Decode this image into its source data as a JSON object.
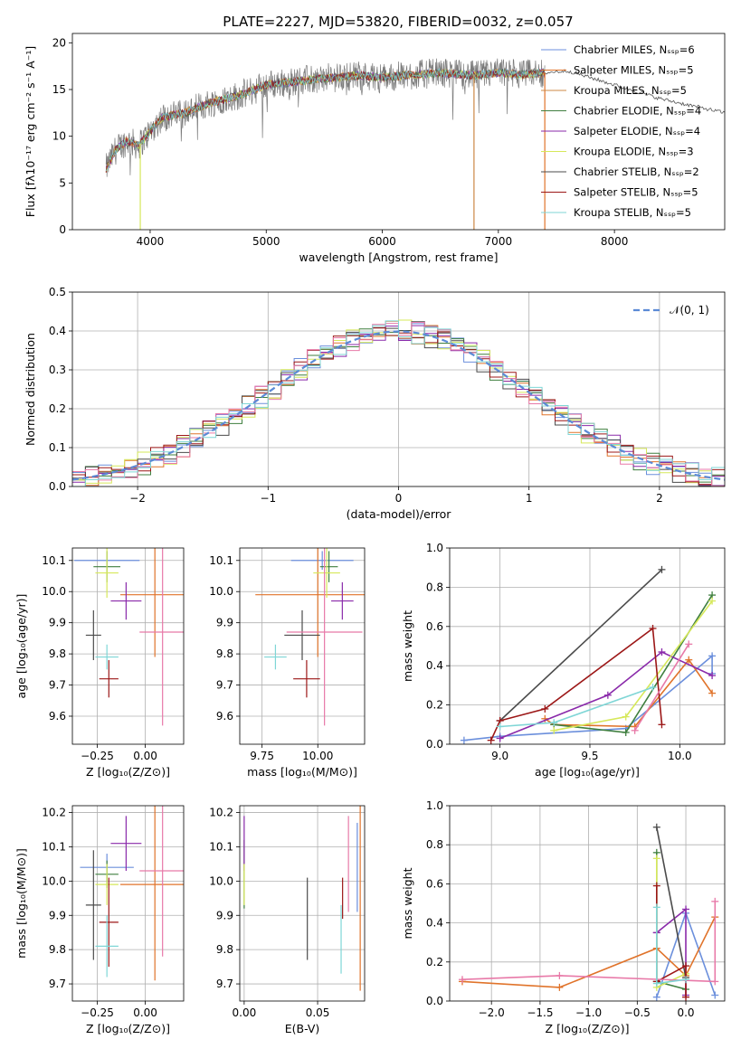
{
  "title": "PLATE=2227, MJD=53820, FIBERID=0032, z=0.057",
  "colors": [
    "#6b8fdc",
    "#e0732a",
    "#3f7f3f",
    "#8a2aaa",
    "#d6e85a",
    "#4b4b4b",
    "#9c1717",
    "#e879a8",
    "#7fd6d6",
    "#999999",
    "#cc8844"
  ],
  "chart_data": [
    {
      "id": "spectrum",
      "type": "line",
      "xlabel": "wavelength [Angstrom, rest frame]",
      "ylabel": "Flux [fλ10⁻¹⁷ erg cm⁻² s⁻¹ A⁻¹]",
      "xlim": [
        3330,
        8950
      ],
      "ylim": [
        0,
        21
      ],
      "xticks": [
        4000,
        5000,
        6000,
        7000,
        8000
      ],
      "yticks": [
        0,
        5,
        10,
        15,
        20
      ],
      "legend_position": "top-right",
      "series": [
        {
          "name": "Chabrier MILES, Nₛₛₚ=6",
          "color": "#6b8fdc"
        },
        {
          "name": "Salpeter MILES, Nₛₛₚ=5",
          "color": "#e0732a"
        },
        {
          "name": "Kroupa MILES, Nₛₛₚ=5",
          "color": "#cc8844"
        },
        {
          "name": "Chabrier ELODIE, Nₛₛₚ=4",
          "color": "#3f7f3f"
        },
        {
          "name": "Salpeter ELODIE, Nₛₛₚ=4",
          "color": "#8a2aaa"
        },
        {
          "name": "Kroupa ELODIE, Nₛₛₚ=3",
          "color": "#d6e85a"
        },
        {
          "name": "Chabrier STELIB, Nₛₛₚ=2",
          "color": "#4b4b4b"
        },
        {
          "name": "Salpeter STELIB, Nₛₛₚ=5",
          "color": "#9c1717"
        },
        {
          "name": "Kroupa STELIB, Nₛₛₚ=5",
          "color": "#7fd6d6"
        }
      ],
      "continuum": {
        "x": [
          3620,
          3700,
          3800,
          3900,
          4000,
          4100,
          4300,
          4500,
          4800,
          5000,
          5200,
          5500,
          5800,
          6000,
          6200,
          6500,
          6800,
          7000,
          7200,
          7400,
          7600,
          8000,
          8400,
          8950
        ],
        "y": [
          6.5,
          8.5,
          9.5,
          9.0,
          10.5,
          12.0,
          12.5,
          13.5,
          14.5,
          15.5,
          15.8,
          16.2,
          16.5,
          16.3,
          16.5,
          16.8,
          16.5,
          16.8,
          16.6,
          16.8,
          17.0,
          15.5,
          14.0,
          12.5
        ]
      }
    },
    {
      "id": "residuals",
      "type": "line",
      "xlabel": "(data-model)/error",
      "ylabel": "Normed distribution",
      "xlim": [
        -2.5,
        2.5
      ],
      "ylim": [
        0,
        0.5
      ],
      "xticks": [
        -2,
        -1,
        0,
        1,
        2
      ],
      "xtick_labels": [
        "−2",
        "−1",
        "0",
        "1",
        "2"
      ],
      "yticks": [
        0,
        0.1,
        0.2,
        0.3,
        0.4,
        0.5
      ],
      "legend": "𝒩(0, 1)",
      "legend_position": "top-right",
      "grid": true,
      "bins": 50
    },
    {
      "id": "age-vs-Z",
      "type": "errorbar",
      "xlabel": "Z [log₁₀(Z/Z⊙)]",
      "ylabel": "age  [log₁₀(age/yr)]",
      "xlim": [
        -0.38,
        0.2
      ],
      "ylim": [
        9.51,
        10.14
      ],
      "xticks": [
        -0.25,
        0.0
      ],
      "xtick_labels": [
        "−0.25",
        "0.00"
      ],
      "yticks": [
        9.6,
        9.7,
        9.8,
        9.9,
        10.0,
        10.1
      ],
      "points": [
        {
          "x": -0.2,
          "y": 10.1,
          "xerr": 0.17,
          "yerr": 0.03,
          "color": "#6b8fdc"
        },
        {
          "x": 0.05,
          "y": 9.99,
          "xerr": 0.18,
          "yerr": 0.2,
          "color": "#e0732a"
        },
        {
          "x": -0.2,
          "y": 10.08,
          "xerr": 0.07,
          "yerr": 0.05,
          "color": "#3f7f3f"
        },
        {
          "x": -0.1,
          "y": 9.97,
          "xerr": 0.08,
          "yerr": 0.06,
          "color": "#8a2aaa"
        },
        {
          "x": -0.2,
          "y": 10.06,
          "xerr": 0.06,
          "yerr": 0.08,
          "color": "#d6e85a"
        },
        {
          "x": -0.27,
          "y": 9.86,
          "xerr": 0.04,
          "yerr": 0.08,
          "color": "#4b4b4b"
        },
        {
          "x": -0.19,
          "y": 9.72,
          "xerr": 0.05,
          "yerr": 0.06,
          "color": "#9c1717"
        },
        {
          "x": 0.09,
          "y": 9.87,
          "xerr": 0.12,
          "yerr": 0.3,
          "color": "#e879a8"
        },
        {
          "x": -0.2,
          "y": 9.79,
          "xerr": 0.06,
          "yerr": 0.04,
          "color": "#7fd6d6"
        }
      ]
    },
    {
      "id": "age-vs-mass",
      "type": "errorbar",
      "xlabel": "mass [log₁₀(M/M⊙)]",
      "ylabel": "",
      "xlim": [
        9.65,
        10.21
      ],
      "ylim": [
        9.51,
        10.14
      ],
      "xticks": [
        9.75,
        10.0
      ],
      "xtick_labels": [
        "9.75",
        "10.00"
      ],
      "yticks": [
        9.6,
        9.7,
        9.8,
        9.9,
        10.0,
        10.1
      ],
      "points": [
        {
          "x": 10.02,
          "y": 10.1,
          "xerr": 0.14,
          "yerr": 0.03,
          "color": "#6b8fdc"
        },
        {
          "x": 10.0,
          "y": 9.99,
          "xerr": 0.28,
          "yerr": 0.2,
          "color": "#e0732a"
        },
        {
          "x": 10.05,
          "y": 10.08,
          "xerr": 0.04,
          "yerr": 0.05,
          "color": "#3f7f3f"
        },
        {
          "x": 10.11,
          "y": 9.97,
          "xerr": 0.05,
          "yerr": 0.06,
          "color": "#8a2aaa"
        },
        {
          "x": 10.04,
          "y": 10.06,
          "xerr": 0.06,
          "yerr": 0.08,
          "color": "#d6e85a"
        },
        {
          "x": 9.93,
          "y": 9.86,
          "xerr": 0.08,
          "yerr": 0.08,
          "color": "#4b4b4b"
        },
        {
          "x": 9.95,
          "y": 9.72,
          "xerr": 0.06,
          "yerr": 0.06,
          "color": "#9c1717"
        },
        {
          "x": 10.03,
          "y": 9.87,
          "xerr": 0.17,
          "yerr": 0.3,
          "color": "#e879a8"
        },
        {
          "x": 9.81,
          "y": 9.79,
          "xerr": 0.05,
          "yerr": 0.04,
          "color": "#7fd6d6"
        }
      ]
    },
    {
      "id": "weight-vs-age",
      "type": "line",
      "xlabel": "age  [log₁₀(age/yr)]",
      "ylabel": "mass weight",
      "xlim": [
        8.72,
        10.25
      ],
      "ylim": [
        0,
        1
      ],
      "xticks": [
        9.0,
        9.5,
        10.0
      ],
      "xtick_labels": [
        "9.0",
        "9.5",
        "10.0"
      ],
      "yticks": [
        0,
        0.2,
        0.4,
        0.6,
        0.8,
        1.0
      ],
      "grid": true,
      "series": [
        {
          "color": "#6b8fdc",
          "x": [
            8.8,
            9.0,
            9.7,
            10.18,
            10.18
          ],
          "y": [
            0.02,
            0.04,
            0.08,
            0.45,
            0.36
          ]
        },
        {
          "color": "#e0732a",
          "x": [
            9.25,
            9.3,
            9.75,
            10.05,
            10.18
          ],
          "y": [
            0.13,
            0.1,
            0.09,
            0.43,
            0.26
          ]
        },
        {
          "color": "#3f7f3f",
          "x": [
            9.3,
            9.7,
            10.18
          ],
          "y": [
            0.1,
            0.06,
            0.76
          ]
        },
        {
          "color": "#8a2aaa",
          "x": [
            9.0,
            9.6,
            9.9,
            10.18
          ],
          "y": [
            0.03,
            0.25,
            0.47,
            0.35
          ]
        },
        {
          "color": "#d6e85a",
          "x": [
            9.3,
            9.7,
            10.18
          ],
          "y": [
            0.07,
            0.14,
            0.73
          ]
        },
        {
          "color": "#4b4b4b",
          "x": [
            9.0,
            9.9
          ],
          "y": [
            0.12,
            0.89
          ]
        },
        {
          "color": "#9c1717",
          "x": [
            8.95,
            9.0,
            9.25,
            9.85,
            9.9
          ],
          "y": [
            0.02,
            0.12,
            0.18,
            0.59,
            0.1
          ]
        },
        {
          "color": "#e879a8",
          "x": [
            9.75,
            10.05
          ],
          "y": [
            0.07,
            0.51
          ]
        },
        {
          "color": "#7fd6d6",
          "x": [
            9.0,
            9.3,
            9.85
          ],
          "y": [
            0.09,
            0.11,
            0.29
          ]
        }
      ]
    },
    {
      "id": "mass-vs-Z",
      "type": "errorbar",
      "xlabel": "Z [log₁₀(Z/Z⊙)]",
      "ylabel": "mass [log₁₀(M/M⊙)]",
      "xlim": [
        -0.38,
        0.2
      ],
      "ylim": [
        9.65,
        10.22
      ],
      "xticks": [
        -0.25,
        0.0
      ],
      "xtick_labels": [
        "−0.25",
        "0.00"
      ],
      "yticks": [
        9.7,
        9.8,
        9.9,
        10.0,
        10.1,
        10.2
      ],
      "points": [
        {
          "x": -0.2,
          "y": 10.04,
          "xerr": 0.14,
          "yerr": 0.04,
          "color": "#6b8fdc"
        },
        {
          "x": 0.05,
          "y": 9.99,
          "xerr": 0.18,
          "yerr": 0.28,
          "color": "#e0732a"
        },
        {
          "x": -0.2,
          "y": 10.02,
          "xerr": 0.06,
          "yerr": 0.04,
          "color": "#3f7f3f"
        },
        {
          "x": -0.1,
          "y": 10.11,
          "xerr": 0.08,
          "yerr": 0.08,
          "color": "#8a2aaa"
        },
        {
          "x": -0.2,
          "y": 9.99,
          "xerr": 0.06,
          "yerr": 0.06,
          "color": "#d6e85a"
        },
        {
          "x": -0.27,
          "y": 9.93,
          "xerr": 0.04,
          "yerr": 0.16,
          "color": "#4b4b4b"
        },
        {
          "x": -0.19,
          "y": 9.88,
          "xerr": 0.05,
          "yerr": 0.13,
          "color": "#9c1717"
        },
        {
          "x": 0.09,
          "y": 10.03,
          "xerr": 0.12,
          "yerr": 0.25,
          "color": "#e879a8"
        },
        {
          "x": -0.2,
          "y": 9.81,
          "xerr": 0.06,
          "yerr": 0.09,
          "color": "#7fd6d6"
        }
      ]
    },
    {
      "id": "mass-vs-ebv",
      "type": "errorbar",
      "xlabel": "E(B-V)",
      "ylabel": "",
      "xlim": [
        -0.003,
        0.082
      ],
      "ylim": [
        9.65,
        10.22
      ],
      "xticks": [
        0.0,
        0.05
      ],
      "xtick_labels": [
        "0.00",
        "0.05"
      ],
      "yticks": [
        9.7,
        9.8,
        9.9,
        10.0,
        10.1,
        10.2
      ],
      "points": [
        {
          "x": 0.077,
          "y": 10.04,
          "xerr": 0,
          "yerr": 0.13,
          "color": "#6b8fdc"
        },
        {
          "x": 0.079,
          "y": 9.98,
          "xerr": 0,
          "yerr": 0.3,
          "color": "#e0732a"
        },
        {
          "x": 0.0,
          "y": 10.02,
          "xerr": 0,
          "yerr": 0.1,
          "color": "#3f7f3f"
        },
        {
          "x": 0.0,
          "y": 10.11,
          "xerr": 0,
          "yerr": 0.08,
          "color": "#8a2aaa"
        },
        {
          "x": 0.0,
          "y": 9.99,
          "xerr": 0,
          "yerr": 0.06,
          "color": "#d6e85a"
        },
        {
          "x": 0.043,
          "y": 9.89,
          "xerr": 0,
          "yerr": 0.12,
          "color": "#4b4b4b"
        },
        {
          "x": 0.067,
          "y": 9.95,
          "xerr": 0,
          "yerr": 0.06,
          "color": "#9c1717"
        },
        {
          "x": 0.071,
          "y": 10.05,
          "xerr": 0,
          "yerr": 0.14,
          "color": "#e879a8"
        },
        {
          "x": 0.066,
          "y": 9.83,
          "xerr": 0,
          "yerr": 0.1,
          "color": "#7fd6d6"
        }
      ]
    },
    {
      "id": "weight-vs-Z",
      "type": "line",
      "xlabel": "Z [log₁₀(Z/Z⊙)]",
      "ylabel": "mass weight",
      "xlim": [
        -2.43,
        0.4
      ],
      "ylim": [
        0,
        1
      ],
      "xticks": [
        -2.0,
        -1.5,
        -1.0,
        -0.5,
        0.0
      ],
      "xtick_labels": [
        "−2.0",
        "−1.5",
        "−1.0",
        "−0.5",
        "0.0"
      ],
      "yticks": [
        0,
        0.2,
        0.4,
        0.6,
        0.8,
        1.0
      ],
      "grid": true,
      "series": [
        {
          "color": "#6b8fdc",
          "x": [
            -0.3,
            0.0,
            0.3
          ],
          "y": [
            0.02,
            0.45,
            0.03
          ]
        },
        {
          "color": "#e0732a",
          "x": [
            -2.3,
            -1.3,
            -0.3,
            0.0,
            0.3
          ],
          "y": [
            0.1,
            0.07,
            0.27,
            0.13,
            0.43
          ]
        },
        {
          "color": "#3f7f3f",
          "x": [
            -0.3,
            -0.3,
            0.0
          ],
          "y": [
            0.76,
            0.1,
            0.06
          ]
        },
        {
          "color": "#8a2aaa",
          "x": [
            -0.3,
            -0.3,
            0.0,
            0.0
          ],
          "y": [
            0.35,
            0.35,
            0.47,
            0.03
          ]
        },
        {
          "color": "#d6e85a",
          "x": [
            -0.3,
            -0.3,
            0.0
          ],
          "y": [
            0.73,
            0.07,
            0.14
          ]
        },
        {
          "color": "#4b4b4b",
          "x": [
            -0.3,
            0.0
          ],
          "y": [
            0.89,
            0.12
          ]
        },
        {
          "color": "#9c1717",
          "x": [
            -0.3,
            -0.3,
            0.0,
            0.0
          ],
          "y": [
            0.59,
            0.1,
            0.18,
            0.02
          ]
        },
        {
          "color": "#e879a8",
          "x": [
            -2.3,
            -1.3,
            0.3,
            0.3
          ],
          "y": [
            0.11,
            0.13,
            0.1,
            0.51
          ]
        },
        {
          "color": "#7fd6d6",
          "x": [
            -0.3,
            -0.3,
            0.0
          ],
          "y": [
            0.48,
            0.09,
            0.11
          ]
        }
      ]
    }
  ]
}
